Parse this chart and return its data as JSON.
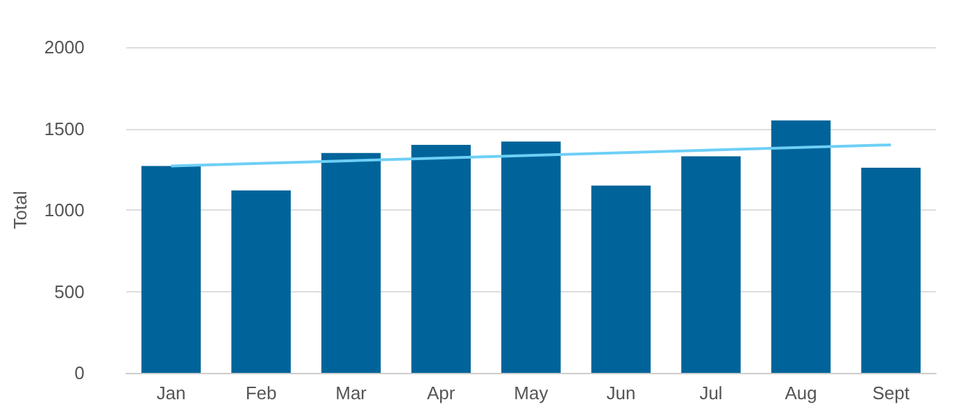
{
  "chart_data": {
    "type": "bar",
    "ylabel": "Total",
    "categories": [
      "Jan",
      "Feb",
      "Mar",
      "Apr",
      "May",
      "Jun",
      "Jul",
      "Aug",
      "Sept"
    ],
    "series": [
      {
        "color": "#00649a",
        "values": [
          1270,
          1120,
          1350,
          1400,
          1420,
          1150,
          1330,
          1550,
          1260
        ]
      },
      {
        "type": "line",
        "color": "#6dcff6",
        "x": [
          "Jan",
          "Sept"
        ],
        "values": [
          1270,
          1400
        ]
      }
    ],
    "ylim": [
      0,
      2000
    ],
    "yticks": [
      0,
      500,
      1000,
      1500,
      2000
    ],
    "grid": "y",
    "marker": "none",
    "line_style": "solid"
  }
}
